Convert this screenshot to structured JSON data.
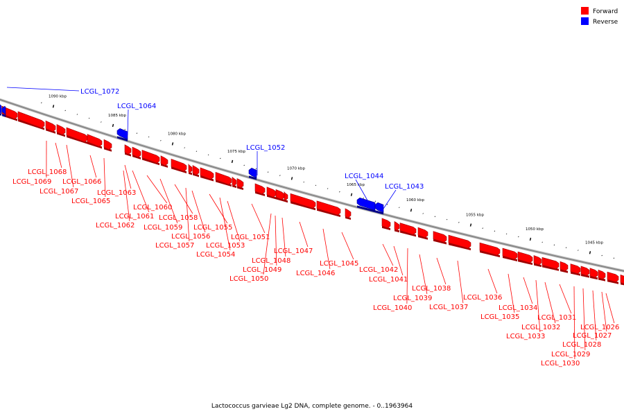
{
  "caption": "Lactococcus garvieae Lg2 DNA, complete genome. - 0..1963964",
  "colors": {
    "forward": "#ff0000",
    "reverse": "#0000ff",
    "backbone": "#888888"
  },
  "legend": [
    {
      "label": "Forward",
      "color": "#ff0000"
    },
    {
      "label": "Reverse",
      "color": "#0000ff"
    }
  ],
  "scale_unit": "kbp",
  "ticks_kbp": [
    1090,
    1085,
    1080,
    1075,
    1070,
    1065,
    1060,
    1055,
    1050,
    1045
  ],
  "tick_labels": [
    "1090 kbp",
    "1085 kbp",
    "1080 kbp",
    "1075 kbp",
    "1070 kbp",
    "1065 kbp",
    "1060 kbp",
    "1055 kbp",
    "1050 kbp",
    "1045 kbp"
  ],
  "reverse_genes": [
    "LCGL_1072",
    "LCGL_1064",
    "LCGL_1052",
    "LCGL_1044",
    "LCGL_1043"
  ],
  "forward_genes": [
    "LCGL_1069",
    "LCGL_1068",
    "LCGL_1067",
    "LCGL_1066",
    "LCGL_1065",
    "LCGL_1063",
    "LCGL_1062",
    "LCGL_1061",
    "LCGL_1060",
    "LCGL_1059",
    "LCGL_1058",
    "LCGL_1057",
    "LCGL_1056",
    "LCGL_1055",
    "LCGL_1054",
    "LCGL_1053",
    "LCGL_1051",
    "LCGL_1050",
    "LCGL_1049",
    "LCGL_1048",
    "LCGL_1047",
    "LCGL_1046",
    "LCGL_1045",
    "LCGL_1042",
    "LCGL_1041",
    "LCGL_1040",
    "LCGL_1039",
    "LCGL_1038",
    "LCGL_1037",
    "LCGL_1036",
    "LCGL_1035",
    "LCGL_1034",
    "LCGL_1033",
    "LCGL_1032",
    "LCGL_1031",
    "LCGL_1030",
    "LCGL_1029",
    "LCGL_1028",
    "LCGL_1027",
    "LCGL_1026"
  ]
}
